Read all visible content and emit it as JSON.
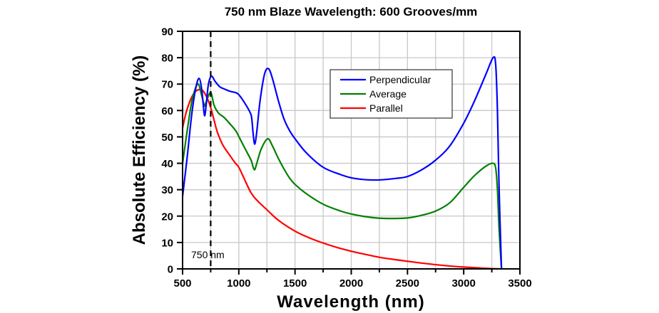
{
  "chart_data": {
    "type": "line",
    "title": "750 nm Blaze Wavelength: 600 Grooves/mm",
    "xlabel": "Wavelength (nm)",
    "ylabel": "Absolute Efficiency (%)",
    "xlim": [
      500,
      3500
    ],
    "ylim": [
      0,
      90
    ],
    "xticks": [
      500,
      1000,
      1500,
      2000,
      2500,
      3000,
      3500
    ],
    "xtick_labels": [
      "500",
      "1000",
      "1500",
      "2000",
      "2500",
      "3000",
      "3500"
    ],
    "yticks": [
      0,
      10,
      20,
      30,
      40,
      50,
      60,
      70,
      80,
      90
    ],
    "ytick_labels": [
      "0",
      "10",
      "20",
      "30",
      "40",
      "50",
      "60",
      "70",
      "80",
      "90"
    ],
    "grid": true,
    "grid_x_step": 250,
    "grid_y_step": 10,
    "legend_position": "upper-center-right",
    "annotation": {
      "type": "vertical-dashed-line",
      "x": 750,
      "label": "750 nm"
    },
    "series": [
      {
        "name": "Perpendicular",
        "color": "#0000ff",
        "points": [
          [
            500,
            27.5
          ],
          [
            540,
            42
          ],
          [
            580,
            58
          ],
          [
            615,
            68
          ],
          [
            646,
            72.2
          ],
          [
            670,
            68
          ],
          [
            690,
            59.5
          ],
          [
            699,
            58.3
          ],
          [
            712,
            63
          ],
          [
            730,
            70
          ],
          [
            756,
            73
          ],
          [
            790,
            71
          ],
          [
            830,
            69
          ],
          [
            868,
            68.2
          ],
          [
            920,
            67.3
          ],
          [
            970,
            66.8
          ],
          [
            1000,
            66
          ],
          [
            1050,
            63
          ],
          [
            1100,
            59.3
          ],
          [
            1115,
            57
          ],
          [
            1128,
            51
          ],
          [
            1142,
            47.3
          ],
          [
            1160,
            52
          ],
          [
            1190,
            64
          ],
          [
            1230,
            74
          ],
          [
            1265,
            75.8
          ],
          [
            1300,
            72
          ],
          [
            1350,
            64
          ],
          [
            1400,
            57
          ],
          [
            1450,
            52.5
          ],
          [
            1500,
            49.3
          ],
          [
            1600,
            44
          ],
          [
            1750,
            38.5
          ],
          [
            1900,
            35.8
          ],
          [
            2000,
            34.5
          ],
          [
            2125,
            33.8
          ],
          [
            2250,
            33.7
          ],
          [
            2400,
            34.3
          ],
          [
            2500,
            35
          ],
          [
            2625,
            37.5
          ],
          [
            2750,
            41.2
          ],
          [
            2875,
            46.5
          ],
          [
            3000,
            55.2
          ],
          [
            3100,
            64
          ],
          [
            3200,
            74
          ],
          [
            3263,
            80.1
          ],
          [
            3285,
            77
          ],
          [
            3300,
            60
          ],
          [
            3315,
            30
          ],
          [
            3336,
            0
          ]
        ]
      },
      {
        "name": "Average",
        "color": "#008000",
        "points": [
          [
            500,
            40
          ],
          [
            540,
            52
          ],
          [
            580,
            63
          ],
          [
            615,
            68.5
          ],
          [
            641,
            70
          ],
          [
            665,
            66.5
          ],
          [
            690,
            62.3
          ],
          [
            699,
            61.9
          ],
          [
            720,
            64.5
          ],
          [
            752,
            66.8
          ],
          [
            780,
            62
          ],
          [
            820,
            59
          ],
          [
            868,
            57.4
          ],
          [
            920,
            55
          ],
          [
            970,
            52.5
          ],
          [
            1000,
            50.2
          ],
          [
            1050,
            46
          ],
          [
            1100,
            42
          ],
          [
            1115,
            40.5
          ],
          [
            1128,
            38.5
          ],
          [
            1142,
            37.6
          ],
          [
            1160,
            40
          ],
          [
            1200,
            45.5
          ],
          [
            1257,
            49.3
          ],
          [
            1300,
            46.5
          ],
          [
            1350,
            42
          ],
          [
            1400,
            38
          ],
          [
            1450,
            34.5
          ],
          [
            1500,
            32
          ],
          [
            1600,
            28.5
          ],
          [
            1750,
            24.5
          ],
          [
            1900,
            22
          ],
          [
            2000,
            20.8
          ],
          [
            2125,
            19.8
          ],
          [
            2250,
            19.2
          ],
          [
            2375,
            19.1
          ],
          [
            2500,
            19.3
          ],
          [
            2625,
            20.3
          ],
          [
            2750,
            21.9
          ],
          [
            2875,
            25
          ],
          [
            3000,
            30.9
          ],
          [
            3100,
            35.5
          ],
          [
            3200,
            39
          ],
          [
            3263,
            40
          ],
          [
            3285,
            38
          ],
          [
            3300,
            30
          ],
          [
            3315,
            15
          ],
          [
            3336,
            0
          ]
        ]
      },
      {
        "name": "Parallel",
        "color": "#ff0000",
        "points": [
          [
            500,
            53.4
          ],
          [
            530,
            59
          ],
          [
            570,
            64
          ],
          [
            610,
            67
          ],
          [
            646,
            67.9
          ],
          [
            680,
            67.5
          ],
          [
            710,
            65.5
          ],
          [
            741,
            62.3
          ],
          [
            770,
            58
          ],
          [
            804,
            52.5
          ],
          [
            840,
            48.5
          ],
          [
            868,
            46.2
          ],
          [
            920,
            43
          ],
          [
            970,
            40
          ],
          [
            1000,
            38.5
          ],
          [
            1050,
            34
          ],
          [
            1100,
            29.5
          ],
          [
            1134,
            27.3
          ],
          [
            1180,
            25.2
          ],
          [
            1250,
            22.4
          ],
          [
            1350,
            18.5
          ],
          [
            1500,
            14.3
          ],
          [
            1625,
            11.8
          ],
          [
            1750,
            9.8
          ],
          [
            1875,
            8.1
          ],
          [
            2000,
            6.7
          ],
          [
            2125,
            5.5
          ],
          [
            2250,
            4.4
          ],
          [
            2375,
            3.6
          ],
          [
            2500,
            2.9
          ],
          [
            2625,
            2.2
          ],
          [
            2750,
            1.6
          ],
          [
            2875,
            1.1
          ],
          [
            3000,
            0.7
          ],
          [
            3125,
            0.4
          ],
          [
            3250,
            0.1
          ],
          [
            3336,
            0
          ]
        ]
      }
    ]
  }
}
